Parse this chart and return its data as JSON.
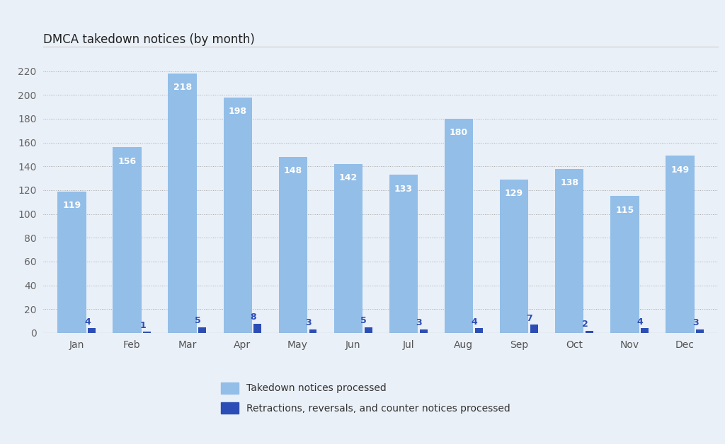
{
  "title": "DMCA takedown notices (by month)",
  "months": [
    "Jan",
    "Feb",
    "Mar",
    "Apr",
    "May",
    "Jun",
    "Jul",
    "Aug",
    "Sep",
    "Oct",
    "Nov",
    "Dec"
  ],
  "takedown": [
    119,
    156,
    218,
    198,
    148,
    142,
    133,
    180,
    129,
    138,
    115,
    149
  ],
  "retractions": [
    4,
    1,
    5,
    8,
    3,
    5,
    3,
    4,
    7,
    2,
    4,
    3
  ],
  "takedown_color": "#92BEE8",
  "retraction_color": "#2B4DB5",
  "background_color": "#EAF0F8",
  "plot_bg_color": "#EAF0F8",
  "grid_color": "#AAAAAA",
  "title_fontsize": 12,
  "tick_fontsize": 10,
  "bar_label_fontsize": 9,
  "ylim": [
    0,
    235
  ],
  "yticks": [
    0,
    20,
    40,
    60,
    80,
    100,
    120,
    140,
    160,
    180,
    200,
    220
  ],
  "group_width": 0.65,
  "bar_gap": 0.04,
  "legend_label_takedown": "Takedown notices processed",
  "legend_label_retractions": "Retractions, reversals, and counter notices processed"
}
